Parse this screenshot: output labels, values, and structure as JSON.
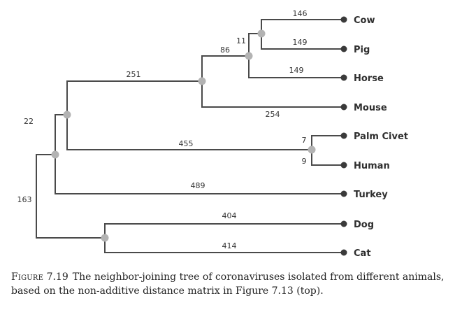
{
  "figure": {
    "label": "Figure",
    "number": "7.19",
    "caption": "The neighbor-joining tree of coronaviruses isolated from different animals, based on the non-additive distance matrix in Figure 7.13 (top)."
  },
  "taxa": [
    "Cow",
    "Pig",
    "Horse",
    "Mouse",
    "Palm Civet",
    "Human",
    "Turkey",
    "Dog",
    "Cat"
  ],
  "branch_lengths": {
    "cow": "146",
    "pig": "149",
    "cow_pig_clade": "11",
    "horse": "149",
    "ungulate_clade": "86",
    "mouse": "254",
    "mammal_clade": "251",
    "palm_civet": "7",
    "human": "9",
    "sars_clade": "455",
    "main_clade": "22",
    "turkey": "489",
    "root_upper": "163",
    "dog": "404",
    "cat": "414"
  },
  "colors": {
    "branch": "#4a4a4a",
    "internal_node": "#b3b3b3",
    "tip_node": "#3a3a3a"
  }
}
